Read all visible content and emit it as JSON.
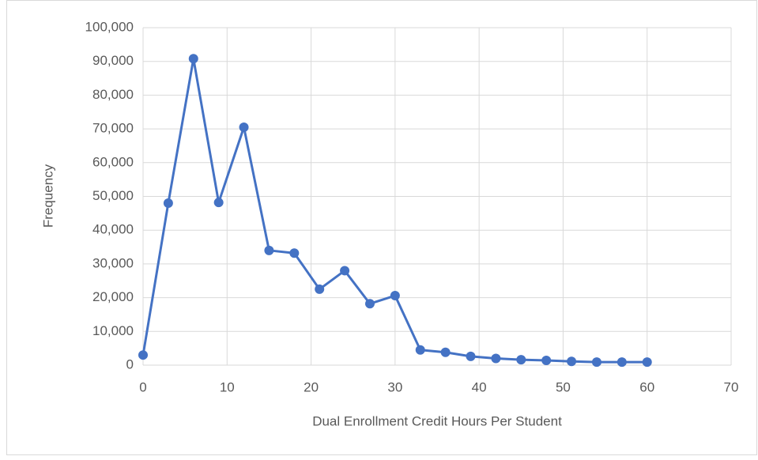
{
  "chart_data": {
    "type": "line",
    "x_label": "Dual Enrollment Credit Hours Per Student",
    "y_label": "Frequency",
    "x": [
      0,
      3,
      6,
      9,
      12,
      15,
      18,
      21,
      24,
      27,
      30,
      33,
      36,
      39,
      42,
      45,
      48,
      51,
      54,
      57,
      60
    ],
    "values": [
      3000,
      48000,
      90800,
      48200,
      70500,
      34000,
      33200,
      22500,
      28000,
      18200,
      20600,
      4500,
      3800,
      2600,
      2000,
      1600,
      1400,
      1100,
      900,
      900,
      900
    ],
    "color": "#4472c4",
    "xlim": [
      0,
      70
    ],
    "xticks": [
      0,
      10,
      20,
      30,
      40,
      50,
      60,
      70
    ],
    "ylim": [
      0,
      100000
    ],
    "yticks": [
      0,
      {
        "value": 10000,
        "label": "10,000"
      },
      {
        "value": 20000,
        "label": "20,000"
      },
      {
        "value": 30000,
        "label": "30,000"
      },
      {
        "value": 40000,
        "label": "40,000"
      },
      {
        "value": 50000,
        "label": "50,000"
      },
      {
        "value": 60000,
        "label": "60,000"
      },
      {
        "value": 70000,
        "label": "70,000"
      },
      {
        "value": 80000,
        "label": "80,000"
      },
      {
        "value": 90000,
        "label": "90,000"
      },
      {
        "value": 100000,
        "label": "100,000"
      }
    ],
    "grid": true
  }
}
